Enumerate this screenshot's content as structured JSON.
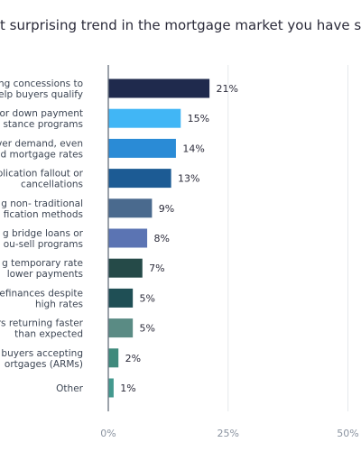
{
  "chart_data": {
    "type": "bar",
    "orientation": "horizontal",
    "title": "t surprising trend in the mortgage market you have se",
    "categories": [
      [
        "ng concessions to",
        "elp buyers qualify"
      ],
      [
        "or down payment",
        "stance programs"
      ],
      [
        "ver demand, even",
        "d mortgage rates"
      ],
      [
        "plication fallout or",
        "cancellations"
      ],
      [
        "g non- traditional",
        "fication methods"
      ],
      [
        "g bridge loans or",
        "ou-sell programs"
      ],
      [
        "g temporary rate",
        "lower payments"
      ],
      [
        "efinances despite",
        "high rates"
      ],
      [
        "rs returning faster",
        "than expected"
      ],
      [
        "buyers accepting",
        "ortgages (ARMs)"
      ],
      [
        "Other"
      ]
    ],
    "values": [
      21,
      15,
      14,
      13,
      9,
      8,
      7,
      5,
      5,
      2,
      1
    ],
    "value_labels": [
      "21%",
      "15%",
      "14%",
      "13%",
      "9%",
      "8%",
      "7%",
      "5%",
      "5%",
      "2%",
      "1%"
    ],
    "bar_colors": [
      "#1f2a4d",
      "#41b6f5",
      "#2a8bd6",
      "#1c5b94",
      "#4a6a8e",
      "#5b74b3",
      "#254a48",
      "#1f4f55",
      "#5a8b84",
      "#3f8a7c",
      "#43998e"
    ],
    "x_ticks": [
      "0%",
      "25%",
      "50%"
    ],
    "x_tick_values": [
      0,
      25,
      50
    ],
    "xlim": [
      0,
      50
    ],
    "xlabel": "",
    "ylabel": "",
    "grid": true,
    "legend": "none",
    "axis_color": "#5a6472",
    "grid_color": "#e6e8ec"
  }
}
